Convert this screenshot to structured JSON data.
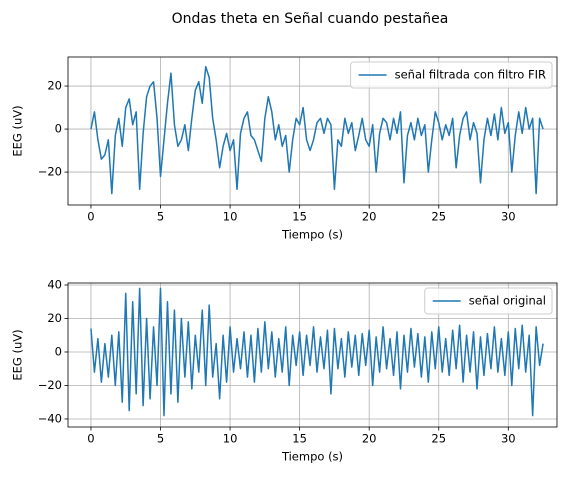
{
  "title": "Ondas theta en Señal cuando pestañea",
  "chart_data": [
    {
      "type": "line",
      "xlabel": "Tiempo (s)",
      "ylabel": "EEG (uV)",
      "x": [
        0,
        0.25,
        0.5,
        0.75,
        1,
        1.25,
        1.5,
        1.75,
        2,
        2.25,
        2.5,
        2.75,
        3,
        3.25,
        3.5,
        3.75,
        4,
        4.25,
        4.5,
        4.75,
        5,
        5.25,
        5.5,
        5.75,
        6,
        6.25,
        6.5,
        6.75,
        7,
        7.25,
        7.5,
        7.75,
        8,
        8.25,
        8.5,
        8.75,
        9,
        9.25,
        9.5,
        9.75,
        10,
        10.25,
        10.5,
        10.75,
        11,
        11.25,
        11.5,
        11.75,
        12,
        12.25,
        12.5,
        12.75,
        13,
        13.25,
        13.5,
        13.75,
        14,
        14.25,
        14.5,
        14.75,
        15,
        15.25,
        15.5,
        15.75,
        16,
        16.25,
        16.5,
        16.75,
        17,
        17.25,
        17.5,
        17.75,
        18,
        18.25,
        18.5,
        18.75,
        19,
        19.25,
        19.5,
        19.75,
        20,
        20.25,
        20.5,
        20.75,
        21,
        21.25,
        21.5,
        21.75,
        22,
        22.25,
        22.5,
        22.75,
        23,
        23.25,
        23.5,
        23.75,
        24,
        24.25,
        24.5,
        24.75,
        25,
        25.25,
        25.5,
        25.75,
        26,
        26.25,
        26.5,
        26.75,
        27,
        27.25,
        27.5,
        27.75,
        28,
        28.25,
        28.5,
        28.75,
        29,
        29.25,
        29.5,
        29.75,
        30,
        30.25,
        30.5,
        30.75,
        31,
        31.25,
        31.5,
        31.75,
        32,
        32.25,
        32.5
      ],
      "series": [
        {
          "name": "señal filtrada con filtro FIR",
          "color": "#1f77b4",
          "values": [
            0,
            8,
            -5,
            -14,
            -12,
            -5,
            -30,
            -3,
            5,
            -8,
            10,
            14,
            2,
            8,
            -28,
            -2,
            15,
            20,
            22,
            5,
            -22,
            -5,
            12,
            26,
            2,
            -8,
            -5,
            2,
            -10,
            5,
            18,
            22,
            12,
            29,
            24,
            5,
            -5,
            -18,
            -8,
            -2,
            -10,
            -5,
            -28,
            -2,
            5,
            8,
            -3,
            -5,
            -10,
            -15,
            5,
            15,
            8,
            -5,
            2,
            -8,
            -3,
            -20,
            -5,
            5,
            2,
            10,
            -5,
            -10,
            -5,
            3,
            5,
            -2,
            5,
            2,
            -28,
            -5,
            -8,
            5,
            -2,
            3,
            -10,
            -3,
            5,
            -5,
            -8,
            2,
            -20,
            -2,
            5,
            3,
            -5,
            5,
            -2,
            8,
            -25,
            -3,
            3,
            -5,
            5,
            -3,
            2,
            -20,
            -5,
            8,
            3,
            -5,
            2,
            -3,
            5,
            -18,
            -3,
            5,
            8,
            -5,
            3,
            -2,
            -25,
            -5,
            5,
            -3,
            7,
            -5,
            10,
            -2,
            3,
            -20,
            -3,
            8,
            -2,
            10,
            0,
            5,
            -30,
            5,
            0
          ]
        }
      ],
      "xlim": [
        -1.65,
        33.5
      ],
      "ylim": [
        -35.3,
        33.5
      ],
      "xticks": [
        0,
        5,
        10,
        15,
        20,
        25,
        30
      ],
      "yticks": [
        {
          "value": -20,
          "label": "−20"
        },
        0,
        20
      ],
      "grid": true,
      "legend": "upper right"
    },
    {
      "type": "line",
      "xlabel": "Tiempo (s)",
      "ylabel": "EEG (uV)",
      "x": [
        0,
        0.25,
        0.5,
        0.75,
        1,
        1.25,
        1.5,
        1.75,
        2,
        2.25,
        2.5,
        2.75,
        3,
        3.25,
        3.5,
        3.75,
        4,
        4.25,
        4.5,
        4.75,
        5,
        5.25,
        5.5,
        5.75,
        6,
        6.25,
        6.5,
        6.75,
        7,
        7.25,
        7.5,
        7.75,
        8,
        8.25,
        8.5,
        8.75,
        9,
        9.25,
        9.5,
        9.75,
        10,
        10.25,
        10.5,
        10.75,
        11,
        11.25,
        11.5,
        11.75,
        12,
        12.25,
        12.5,
        12.75,
        13,
        13.25,
        13.5,
        13.75,
        14,
        14.25,
        14.5,
        14.75,
        15,
        15.25,
        15.5,
        15.75,
        16,
        16.25,
        16.5,
        16.75,
        17,
        17.25,
        17.5,
        17.75,
        18,
        18.25,
        18.5,
        18.75,
        19,
        19.25,
        19.5,
        19.75,
        20,
        20.25,
        20.5,
        20.75,
        21,
        21.25,
        21.5,
        21.75,
        22,
        22.25,
        22.5,
        22.75,
        23,
        23.25,
        23.5,
        23.75,
        24,
        24.25,
        24.5,
        24.75,
        25,
        25.25,
        25.5,
        25.75,
        26,
        26.25,
        26.5,
        26.75,
        27,
        27.25,
        27.5,
        27.75,
        28,
        28.25,
        28.5,
        28.75,
        29,
        29.25,
        29.5,
        29.75,
        30,
        30.25,
        30.5,
        30.75,
        31,
        31.25,
        31.5,
        31.75,
        32,
        32.25,
        32.5
      ],
      "series": [
        {
          "name": "señal original",
          "color": "#1f77b4",
          "values": [
            14,
            -12,
            8,
            -18,
            5,
            -15,
            10,
            -20,
            12,
            -30,
            35,
            -35,
            30,
            -25,
            38,
            -32,
            20,
            -28,
            15,
            -20,
            38,
            -38,
            30,
            -25,
            25,
            -30,
            20,
            -15,
            18,
            -22,
            10,
            -12,
            25,
            -20,
            28,
            -15,
            5,
            -28,
            10,
            -18,
            15,
            -12,
            8,
            -10,
            12,
            -15,
            10,
            -18,
            14,
            -12,
            18,
            -10,
            12,
            -15,
            8,
            -12,
            15,
            -20,
            10,
            -8,
            12,
            -14,
            10,
            -8,
            15,
            -12,
            9,
            -10,
            13,
            -25,
            14,
            -10,
            8,
            -15,
            12,
            -9,
            10,
            -14,
            11,
            -8,
            13,
            -20,
            9,
            -12,
            15,
            -10,
            8,
            -14,
            12,
            -22,
            10,
            -12,
            14,
            -9,
            11,
            -15,
            9,
            -18,
            12,
            -10,
            15,
            -12,
            8,
            -14,
            13,
            -10,
            16,
            -18,
            10,
            -12,
            12,
            -22,
            9,
            -14,
            11,
            -10,
            15,
            -12,
            8,
            -14,
            12,
            -20,
            14,
            -10,
            16,
            -12,
            10,
            -38,
            15,
            -8,
            5
          ]
        }
      ],
      "xlim": [
        -1.65,
        33.5
      ],
      "ylim": [
        -44.8,
        41.2
      ],
      "xticks": [
        0,
        5,
        10,
        15,
        20,
        25,
        30
      ],
      "yticks": [
        {
          "value": -40,
          "label": "−40"
        },
        {
          "value": -20,
          "label": "−20"
        },
        0,
        20,
        40
      ],
      "grid": true,
      "legend": "upper right"
    }
  ]
}
